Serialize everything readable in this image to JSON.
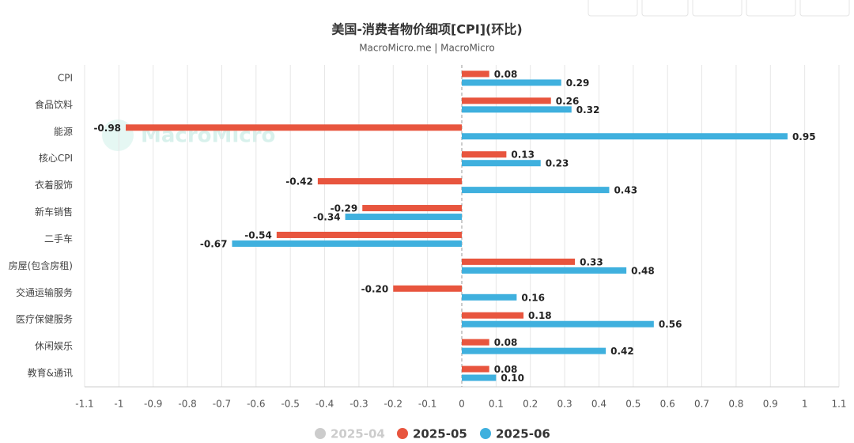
{
  "chart_data": {
    "type": "hbar",
    "title": "美国-消费者物价细项[CPI](环比)",
    "subtitle": "MacroMicro.me | MacroMicro",
    "watermark": "MacroMicro",
    "categories": [
      "CPI",
      "食品饮料",
      "能源",
      "核心CPI",
      "衣着服饰",
      "新车销售",
      "二手车",
      "房屋(包含房租)",
      "交通运输服务",
      "医疗保健服务",
      "休闲娱乐",
      "教育&通讯"
    ],
    "series": [
      {
        "name": "2025-04",
        "color": "#cccccc",
        "hidden": true,
        "values": [
          null,
          null,
          null,
          null,
          null,
          null,
          null,
          null,
          null,
          null,
          null,
          null
        ]
      },
      {
        "name": "2025-05",
        "color": "#e8553e",
        "values": [
          0.08,
          0.26,
          -0.98,
          0.13,
          -0.42,
          -0.29,
          -0.54,
          0.33,
          -0.2,
          0.18,
          0.08,
          0.08
        ],
        "value_labels": [
          "0.08",
          "0.26",
          "-0.98",
          "0.13",
          "-0.42",
          "-0.29",
          "-0.54",
          "0.33",
          "-0.20",
          "0.18",
          "0.08",
          "0.08"
        ]
      },
      {
        "name": "2025-06",
        "color": "#3fb0de",
        "values": [
          0.29,
          0.32,
          0.95,
          0.23,
          0.43,
          -0.34,
          -0.67,
          0.48,
          0.16,
          0.56,
          0.42,
          0.1
        ],
        "value_labels": [
          "0.29",
          "0.32",
          "0.95",
          "0.23",
          "0.43",
          "-0.34",
          "-0.67",
          "0.48",
          "0.16",
          "0.56",
          "0.42",
          "0.10"
        ]
      }
    ],
    "xlim": [
      -1.1,
      1.1
    ],
    "xticks": [
      -1.1,
      -1,
      -0.9,
      -0.8,
      -0.7,
      -0.6,
      -0.5,
      -0.4,
      -0.3,
      -0.2,
      -0.1,
      0,
      0.1,
      0.2,
      0.3,
      0.4,
      0.5,
      0.6,
      0.7,
      0.8,
      0.9,
      1,
      1.1
    ],
    "grid": true,
    "legend": "bottom"
  }
}
